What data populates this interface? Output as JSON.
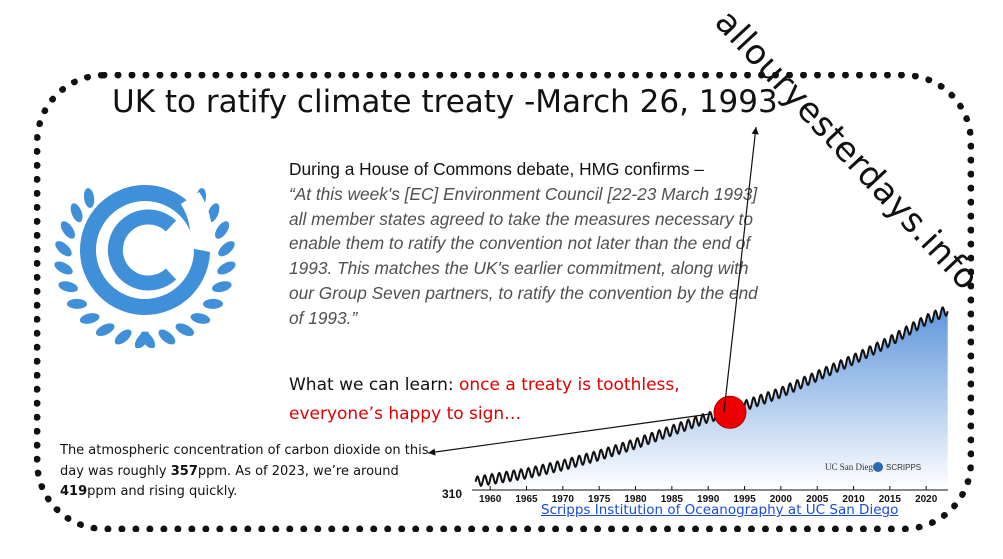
{
  "title": "UK to ratify climate treaty -March 26, 1993",
  "watermark": "allouryesterdays.info",
  "quote": {
    "intro": "During a House of Commons debate, HMG confirms –",
    "body": "“At this week's [EC] Environment Council [22-23 March 1993] all member states agreed to take the measures necessary to enable them to ratify the convention not later than the end of 1993. This matches the UK's earlier commitment, along with our Group Seven partners, to ratify the convention by the end of 1993.”"
  },
  "lesson": {
    "prefix": "What we can learn: ",
    "highlight": "once a treaty is toothless, everyone’s happy to sign…"
  },
  "note": {
    "part1": "The atmospheric concentration of carbon dioxide on this  day was  roughly ",
    "value1": "357",
    "part2": "ppm.  As of 2023, we’re around ",
    "value2": "419",
    "part3": "ppm and rising quickly."
  },
  "credit_link": "Scripps Institution of Oceanography at UC San Diego",
  "logos": {
    "ucsd": "UC San Diego",
    "scripps": "SCRIPPS"
  },
  "colors": {
    "logo_blue": "#3f8fd9",
    "highlight_red": "#e00000",
    "marker_red": "#ee0000",
    "link_blue": "#1a4bd8"
  },
  "chart_data": {
    "type": "line",
    "series": [
      {
        "x": [
          1958,
          1965,
          1970,
          1975,
          1980,
          1985,
          1990,
          1993,
          1995,
          2000,
          2005,
          2010,
          2015,
          2020,
          2023
        ],
        "y": [
          315,
          320,
          325,
          331,
          338,
          346,
          354,
          357,
          361,
          369,
          379,
          389,
          400,
          413,
          419
        ]
      }
    ],
    "x_ticks": [
      "1960",
      "1965",
      "1970",
      "1975",
      "1980",
      "1985",
      "1990",
      "1995",
      "2000",
      "2005",
      "2010",
      "2015",
      "2020"
    ],
    "y_tick_labels": [
      "310"
    ],
    "xlim": [
      1957.5,
      2023
    ],
    "ylim": [
      310,
      425
    ],
    "marker": {
      "x": 1993,
      "y": 357
    }
  }
}
